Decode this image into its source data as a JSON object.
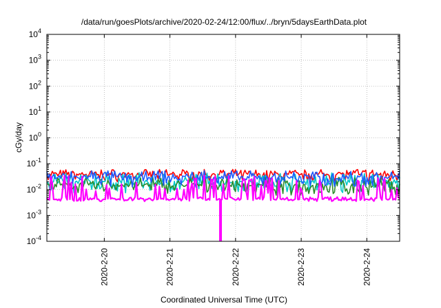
{
  "chart_data": {
    "type": "line",
    "title": "/data/run/goesPlots/archive/2020-02-24/12:00/flux/../bryn/5daysEarthData.plot",
    "xlabel": "Coordinated Universal Time (UTC)",
    "ylabel": "cGy/day",
    "yscale": "log",
    "ylim": [
      0.0001,
      10000
    ],
    "xlim": [
      "2020-02-19T03:00",
      "2020-02-24T12:00"
    ],
    "grid": true,
    "legend": "none",
    "y_ticks": [
      {
        "value": 0.0001,
        "exp": "-4"
      },
      {
        "value": 0.001,
        "exp": "-3"
      },
      {
        "value": 0.01,
        "exp": "-2"
      },
      {
        "value": 0.1,
        "exp": "-1"
      },
      {
        "value": 1,
        "exp": "0"
      },
      {
        "value": 10,
        "exp": "1"
      },
      {
        "value": 100,
        "exp": "2"
      },
      {
        "value": 1000,
        "exp": "3"
      },
      {
        "value": 10000,
        "exp": "4"
      }
    ],
    "x_ticks": [
      {
        "value": "2020-02-20T00:00",
        "label": "2020-2-20"
      },
      {
        "value": "2020-02-21T00:00",
        "label": "2020-2-21"
      },
      {
        "value": "2020-02-22T00:00",
        "label": "2020-2-22"
      },
      {
        "value": "2020-02-23T00:00",
        "label": "2020-2-23"
      },
      {
        "value": "2020-02-24T00:00",
        "label": "2020-2-24"
      }
    ],
    "series": [
      {
        "color": "#ff0000",
        "baseline": 0.04,
        "low": 0.02,
        "high": 0.06
      },
      {
        "color": "#00c8c8",
        "baseline": 0.02,
        "low": 0.007,
        "high": 0.045
      },
      {
        "color": "#2a8a2a",
        "baseline": 0.015,
        "low": 0.006,
        "high": 0.03
      },
      {
        "color": "#1e5aff",
        "baseline": 0.03,
        "low": 0.012,
        "high": 0.055
      },
      {
        "color": "#ff00ff",
        "baseline": 0.0045,
        "low": 0.0035,
        "high": 0.035
      }
    ],
    "annotations": [
      {
        "type": "dropout",
        "series_color": "#ff00ff",
        "x": "2020-02-21T18:30",
        "y_min": 0.0001
      }
    ]
  }
}
